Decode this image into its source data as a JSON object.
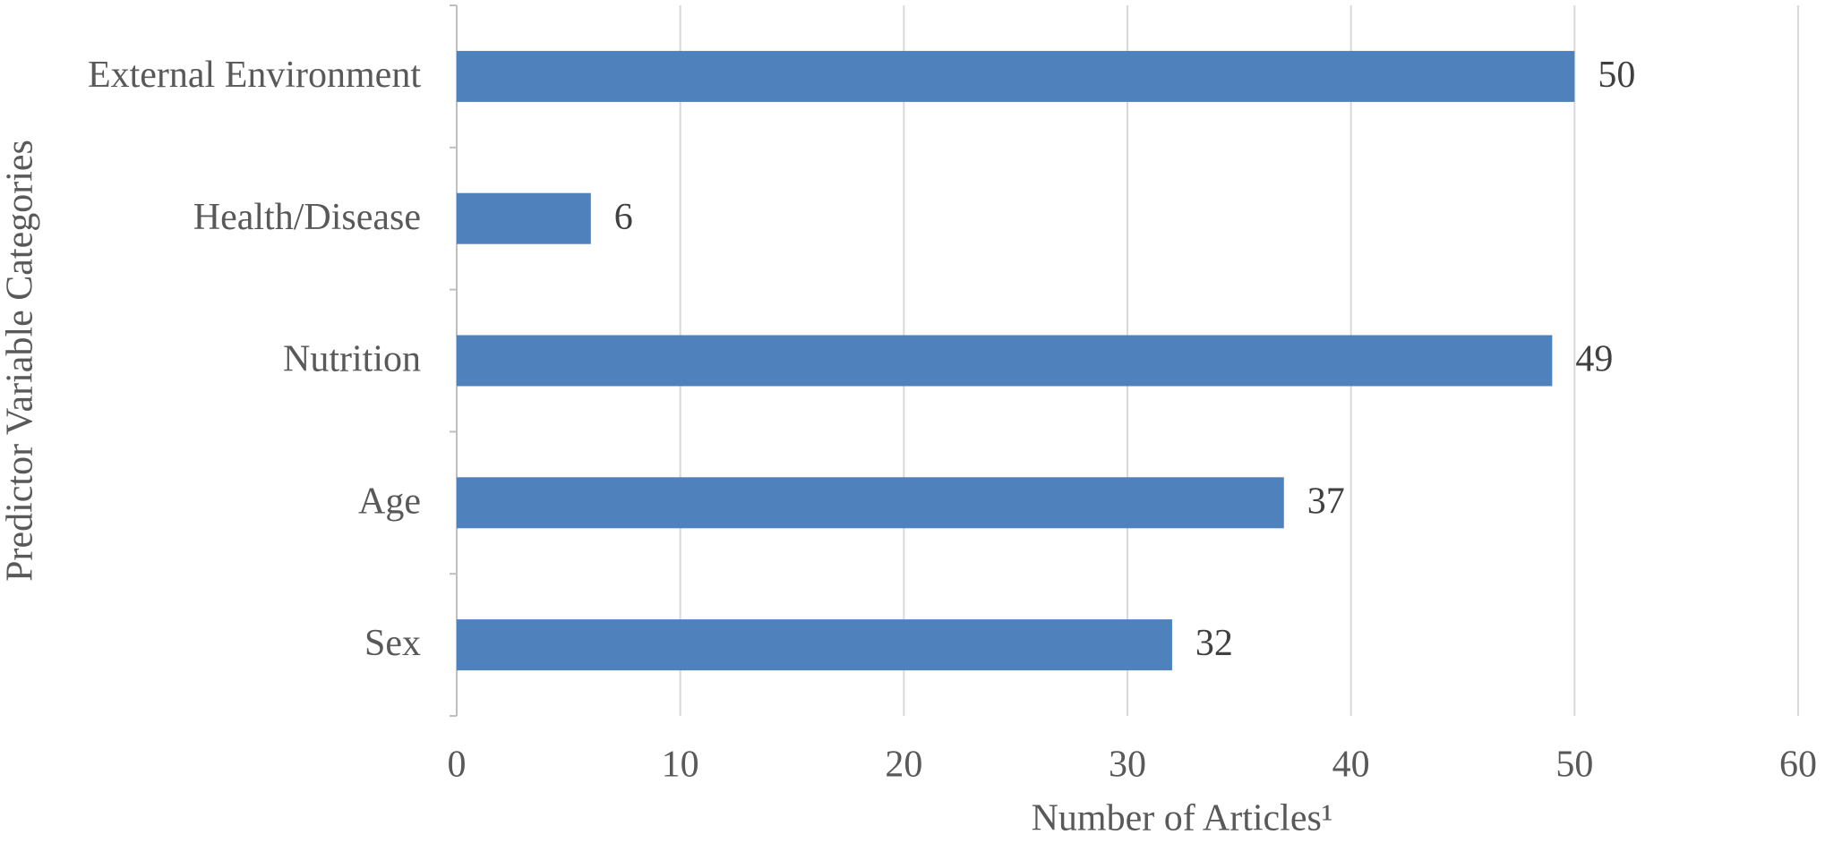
{
  "chart_data": {
    "type": "bar",
    "orientation": "horizontal",
    "categories": [
      "External Environment",
      "Health/Disease",
      "Nutrition",
      "Age",
      "Sex"
    ],
    "values": [
      50,
      6,
      49,
      37,
      32
    ],
    "color": "#4f81bd",
    "xlabel": "Number of Articles¹",
    "ylabel": "Predictor Variable Categories",
    "xlim": [
      0,
      60
    ],
    "xticks": [
      0,
      10,
      20,
      30,
      40,
      50,
      60
    ],
    "grid": true
  }
}
